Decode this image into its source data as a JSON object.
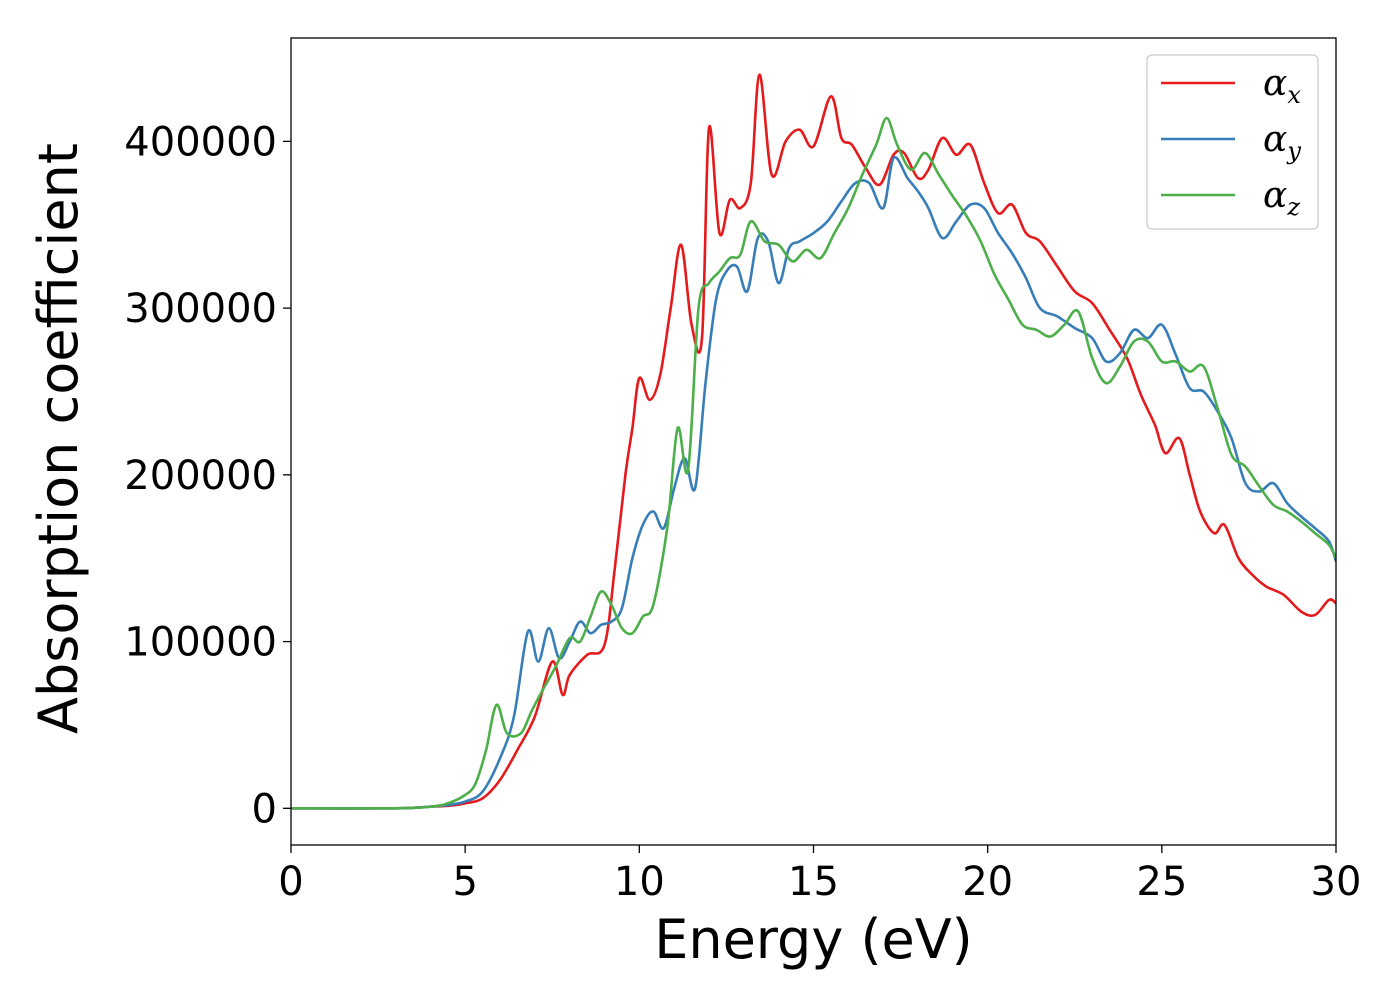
{
  "chart_data": {
    "type": "line",
    "title": "",
    "xlabel": "Energy (eV)",
    "ylabel": "Absorption coefficient",
    "xlim": [
      0,
      30
    ],
    "ylim": [
      -22000,
      462000
    ],
    "xticks": [
      0,
      5,
      10,
      15,
      20,
      25,
      30
    ],
    "yticks": [
      0,
      100000,
      200000,
      300000,
      400000
    ],
    "grid": false,
    "legend_position": "top-right",
    "series": [
      {
        "name": "α",
        "subscript": "x",
        "color": "#e41a1c",
        "x": [
          0,
          3,
          4,
          4.5,
          5,
          5.5,
          6,
          6.5,
          7,
          7.5,
          7.8,
          8,
          8.5,
          9,
          9.3,
          9.6,
          9.8,
          10,
          10.3,
          10.6,
          10.9,
          11.2,
          11.5,
          11.8,
          12.0,
          12.3,
          12.6,
          12.9,
          13.2,
          13.45,
          13.8,
          14.2,
          14.6,
          15.0,
          15.5,
          15.8,
          16.1,
          16.5,
          16.9,
          17.3,
          17.6,
          18.0,
          18.3,
          18.7,
          19.1,
          19.5,
          19.9,
          20.3,
          20.7,
          21.1,
          21.5,
          22.0,
          22.5,
          23.0,
          23.5,
          24.0,
          24.4,
          24.8,
          25.1,
          25.5,
          25.8,
          26.1,
          26.5,
          26.8,
          27.2,
          27.6,
          28.0,
          28.5,
          29.0,
          29.4,
          29.8,
          30.0
        ],
        "y": [
          0,
          0,
          1000,
          1500,
          3000,
          6000,
          17000,
          35000,
          55000,
          88000,
          68000,
          80000,
          92000,
          98000,
          145000,
          200000,
          228000,
          258000,
          245000,
          260000,
          300000,
          338000,
          290000,
          282000,
          408000,
          345000,
          365000,
          360000,
          375000,
          440000,
          380000,
          400000,
          407000,
          397000,
          427000,
          402000,
          398000,
          384000,
          374000,
          392000,
          393000,
          378000,
          383000,
          402000,
          392000,
          398000,
          375000,
          357000,
          362000,
          345000,
          340000,
          325000,
          310000,
          303000,
          287000,
          270000,
          248000,
          230000,
          213000,
          222000,
          200000,
          178000,
          165000,
          170000,
          150000,
          140000,
          133000,
          128000,
          118000,
          116000,
          125000,
          123000
        ]
      },
      {
        "name": "α",
        "subscript": "y",
        "color": "#377eb8",
        "x": [
          0,
          3,
          4,
          4.5,
          5,
          5.5,
          6,
          6.4,
          6.8,
          7.1,
          7.4,
          7.7,
          8.0,
          8.3,
          8.6,
          8.9,
          9.2,
          9.5,
          9.8,
          10.1,
          10.4,
          10.7,
          11.0,
          11.3,
          11.6,
          11.9,
          12.2,
          12.5,
          12.8,
          13.1,
          13.4,
          13.7,
          14.0,
          14.3,
          14.6,
          15.0,
          15.4,
          15.8,
          16.2,
          16.6,
          17.0,
          17.3,
          17.7,
          18.0,
          18.3,
          18.7,
          19.1,
          19.5,
          19.9,
          20.3,
          20.7,
          21.1,
          21.5,
          22.0,
          22.5,
          23.0,
          23.4,
          23.8,
          24.2,
          24.6,
          25.0,
          25.4,
          25.8,
          26.2,
          26.6,
          27.0,
          27.4,
          27.8,
          28.2,
          28.6,
          29.0,
          29.4,
          29.8,
          30.0
        ],
        "y": [
          0,
          0,
          1000,
          2000,
          4000,
          10000,
          30000,
          55000,
          106000,
          88000,
          108000,
          90000,
          100000,
          112000,
          105000,
          110000,
          112000,
          120000,
          150000,
          170000,
          178000,
          168000,
          192000,
          210000,
          192000,
          255000,
          305000,
          322000,
          325000,
          310000,
          342000,
          340000,
          315000,
          336000,
          340000,
          345000,
          352000,
          364000,
          375000,
          375000,
          360000,
          390000,
          378000,
          370000,
          360000,
          342000,
          352000,
          362000,
          360000,
          345000,
          333000,
          318000,
          300000,
          295000,
          288000,
          282000,
          268000,
          273000,
          287000,
          282000,
          290000,
          272000,
          252000,
          250000,
          238000,
          222000,
          195000,
          190000,
          195000,
          183000,
          175000,
          168000,
          160000,
          148000
        ]
      },
      {
        "name": "α",
        "subscript": "z",
        "color": "#4daf4a",
        "x": [
          0,
          3,
          4,
          4.5,
          5,
          5.3,
          5.6,
          5.9,
          6.2,
          6.6,
          6.9,
          7.2,
          7.6,
          8.0,
          8.3,
          8.6,
          8.9,
          9.2,
          9.5,
          9.8,
          10.1,
          10.4,
          10.8,
          11.1,
          11.4,
          11.7,
          12.0,
          12.3,
          12.6,
          12.9,
          13.2,
          13.6,
          14.0,
          14.4,
          14.8,
          15.2,
          15.6,
          16.0,
          16.4,
          16.8,
          17.1,
          17.4,
          17.8,
          18.2,
          18.6,
          19.0,
          19.4,
          19.8,
          20.2,
          20.6,
          21.0,
          21.4,
          21.8,
          22.2,
          22.6,
          23.0,
          23.4,
          23.8,
          24.2,
          24.6,
          25.0,
          25.4,
          25.8,
          26.2,
          26.6,
          27.0,
          27.4,
          27.8,
          28.2,
          28.6,
          29.0,
          29.4,
          29.8,
          30.0
        ],
        "y": [
          0,
          0,
          1000,
          3000,
          8000,
          15000,
          35000,
          62000,
          45000,
          45000,
          58000,
          70000,
          85000,
          102000,
          100000,
          115000,
          130000,
          122000,
          108000,
          105000,
          115000,
          122000,
          168000,
          228000,
          203000,
          300000,
          315000,
          322000,
          330000,
          332000,
          352000,
          340000,
          338000,
          328000,
          335000,
          330000,
          345000,
          360000,
          380000,
          398000,
          414000,
          398000,
          383000,
          393000,
          380000,
          367000,
          355000,
          340000,
          320000,
          305000,
          290000,
          287000,
          283000,
          290000,
          298000,
          270000,
          255000,
          265000,
          280000,
          280000,
          268000,
          268000,
          262000,
          265000,
          240000,
          212000,
          205000,
          193000,
          182000,
          178000,
          172000,
          165000,
          158000,
          150000
        ]
      }
    ]
  }
}
